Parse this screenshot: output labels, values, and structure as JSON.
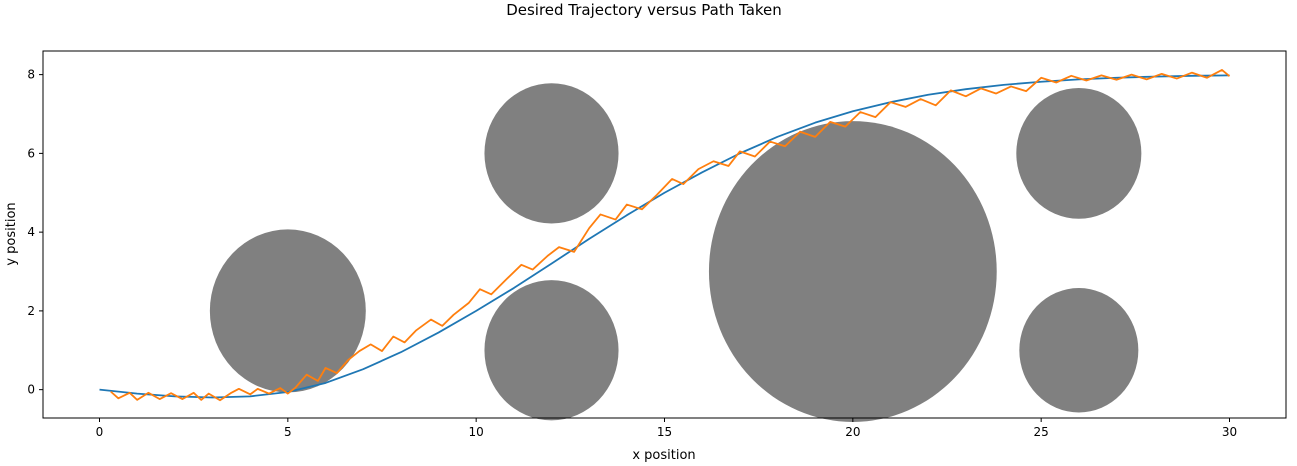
{
  "chart_data": {
    "type": "line",
    "title": "Desired Trajectory versus Path Taken",
    "xlabel": "x position",
    "ylabel": "y position",
    "xlim": [
      -1.5,
      31.5
    ],
    "ylim": [
      -0.72,
      8.6
    ],
    "xticks": [
      0,
      5,
      10,
      15,
      20,
      25,
      30
    ],
    "yticks": [
      0,
      2,
      4,
      6,
      8
    ],
    "grid": false,
    "legend": "none",
    "series": [
      {
        "color": "#1f77b4",
        "x": [
          0,
          1,
          2,
          3,
          4,
          5,
          6,
          7,
          8,
          9,
          10,
          11,
          12,
          13,
          14,
          15,
          16,
          17,
          18,
          19,
          20,
          21,
          22,
          23,
          24,
          25,
          26,
          27,
          28,
          29,
          30
        ],
        "y": [
          0,
          -0.1,
          -0.17,
          -0.2,
          -0.17,
          -0.06,
          0.17,
          0.52,
          0.95,
          1.45,
          2.0,
          2.58,
          3.2,
          3.83,
          4.43,
          5.0,
          5.52,
          6.0,
          6.42,
          6.78,
          7.07,
          7.3,
          7.49,
          7.63,
          7.74,
          7.82,
          7.88,
          7.92,
          7.95,
          7.97,
          7.98
        ]
      },
      {
        "color": "#ff7f0e",
        "x": [
          0.3,
          0.5,
          0.8,
          1.0,
          1.3,
          1.6,
          1.9,
          2.2,
          2.5,
          2.7,
          2.9,
          3.2,
          3.5,
          3.7,
          4.0,
          4.2,
          4.5,
          4.8,
          5.0,
          5.2,
          5.5,
          5.8,
          6.0,
          6.3,
          6.6,
          6.9,
          7.2,
          7.5,
          7.8,
          8.1,
          8.4,
          8.8,
          9.1,
          9.4,
          9.8,
          10.1,
          10.4,
          10.8,
          11.2,
          11.5,
          11.9,
          12.2,
          12.6,
          13.0,
          13.3,
          13.7,
          14.0,
          14.4,
          14.8,
          15.2,
          15.5,
          15.9,
          16.3,
          16.7,
          17.0,
          17.4,
          17.8,
          18.2,
          18.6,
          19.0,
          19.4,
          19.8,
          20.2,
          20.6,
          21.0,
          21.4,
          21.8,
          22.2,
          22.6,
          23.0,
          23.4,
          23.8,
          24.2,
          24.6,
          25.0,
          25.4,
          25.8,
          26.2,
          26.6,
          27.0,
          27.4,
          27.8,
          28.2,
          28.6,
          29.0,
          29.4,
          29.8,
          30.0
        ],
        "y": [
          -0.05,
          -0.22,
          -0.08,
          -0.26,
          -0.08,
          -0.24,
          -0.09,
          -0.24,
          -0.08,
          -0.26,
          -0.1,
          -0.27,
          -0.08,
          0.02,
          -0.12,
          0.02,
          -0.1,
          0.04,
          -0.1,
          0.05,
          0.38,
          0.22,
          0.55,
          0.42,
          0.75,
          0.98,
          1.15,
          0.98,
          1.35,
          1.2,
          1.5,
          1.78,
          1.62,
          1.9,
          2.2,
          2.55,
          2.42,
          2.8,
          3.17,
          3.05,
          3.4,
          3.62,
          3.5,
          4.1,
          4.45,
          4.32,
          4.7,
          4.58,
          4.95,
          5.35,
          5.22,
          5.6,
          5.8,
          5.68,
          6.05,
          5.92,
          6.3,
          6.18,
          6.55,
          6.42,
          6.8,
          6.68,
          7.05,
          6.92,
          7.3,
          7.18,
          7.38,
          7.22,
          7.6,
          7.45,
          7.65,
          7.52,
          7.7,
          7.58,
          7.92,
          7.8,
          7.97,
          7.85,
          7.98,
          7.87,
          8.0,
          7.88,
          8.02,
          7.9,
          8.05,
          7.92,
          8.12,
          7.96
        ]
      }
    ],
    "obstacles": [
      {
        "cx": 5,
        "cy": 2,
        "rx": 2.07,
        "ry": 2.07,
        "color": "#808080"
      },
      {
        "cx": 12,
        "cy": 6,
        "rx": 1.78,
        "ry": 1.78,
        "color": "#808080"
      },
      {
        "cx": 12,
        "cy": 1,
        "rx": 1.78,
        "ry": 1.78,
        "color": "#808080"
      },
      {
        "cx": 20,
        "cy": 3,
        "rx": 3.82,
        "ry": 3.82,
        "color": "#808080"
      },
      {
        "cx": 26,
        "cy": 6,
        "rx": 1.66,
        "ry": 1.66,
        "color": "#808080"
      },
      {
        "cx": 26,
        "cy": 1,
        "rx": 1.58,
        "ry": 1.58,
        "color": "#808080"
      }
    ]
  }
}
